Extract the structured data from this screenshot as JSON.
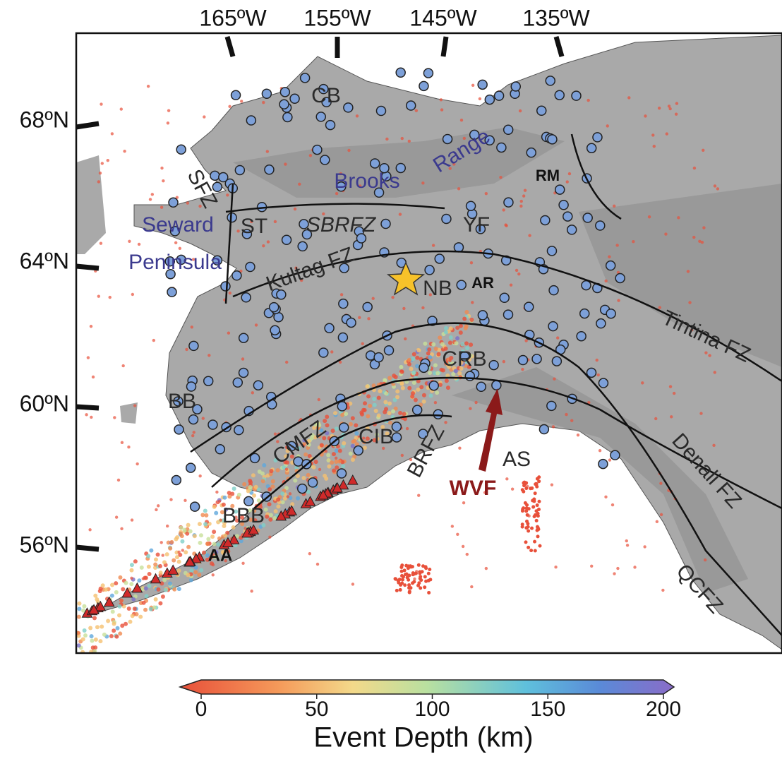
{
  "map": {
    "lon_labels": [
      "165ºW",
      "155ºW",
      "145ºW",
      "135ºW"
    ],
    "lat_labels": [
      "68ºN",
      "64ºN",
      "60ºN",
      "56ºN"
    ],
    "labels": {
      "cb": "CB",
      "brooks": "Brooks",
      "range": "Range",
      "sfz": "SFZ",
      "seward": "Seward",
      "peninsula": "Peninsula",
      "st": "ST",
      "sbrfz": "SBRFZ",
      "yf": "YF",
      "rm": "RM",
      "kultag": "Kultag FZ",
      "nb": "NB",
      "ar": "AR",
      "tintina": "Tintina FZ",
      "crb": "CRB",
      "bb": "BB",
      "cib": "CIB",
      "cmfz": "CMFZ",
      "brfz": "BRFZ",
      "wvf": "WVF",
      "as": "AS",
      "denali": "Denali FZ",
      "bbb": "BBB",
      "aa": "AA",
      "qcfz": "QCFZ"
    }
  },
  "colorbar": {
    "label": "Event Depth (km)",
    "lim": [
      0,
      200
    ],
    "ticks": [
      0,
      50,
      100,
      150,
      200
    ]
  }
}
